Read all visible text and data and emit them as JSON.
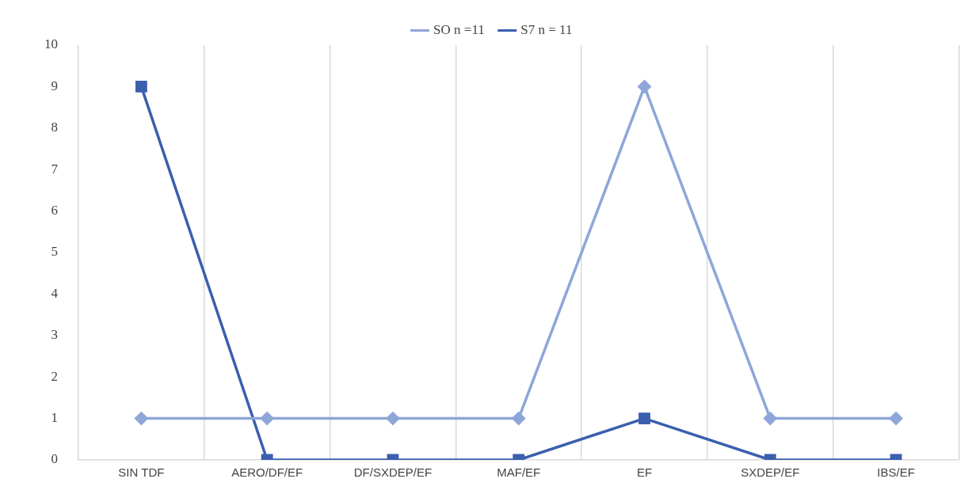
{
  "chart_data": {
    "type": "line",
    "categories": [
      "SIN TDF",
      "AERO/DF/EF",
      "DF/SXDEP/EF",
      "MAF/EF",
      "EF",
      "SXDEP/EF",
      "IBS/EF"
    ],
    "series": [
      {
        "name": "SO n =11",
        "color": "#8ea6d8",
        "marker": "diamond",
        "values": [
          1,
          1,
          1,
          1,
          9,
          1,
          1
        ]
      },
      {
        "name": "S7 n = 11",
        "color": "#3b5fae",
        "marker": "square",
        "values": [
          9,
          0,
          0,
          0,
          1,
          0,
          0
        ]
      }
    ],
    "ylim": [
      0,
      10
    ],
    "yticks": [
      0,
      1,
      2,
      3,
      4,
      5,
      6,
      7,
      8,
      9,
      10
    ],
    "grid": "x",
    "legend": "top",
    "line_style": "solid"
  }
}
